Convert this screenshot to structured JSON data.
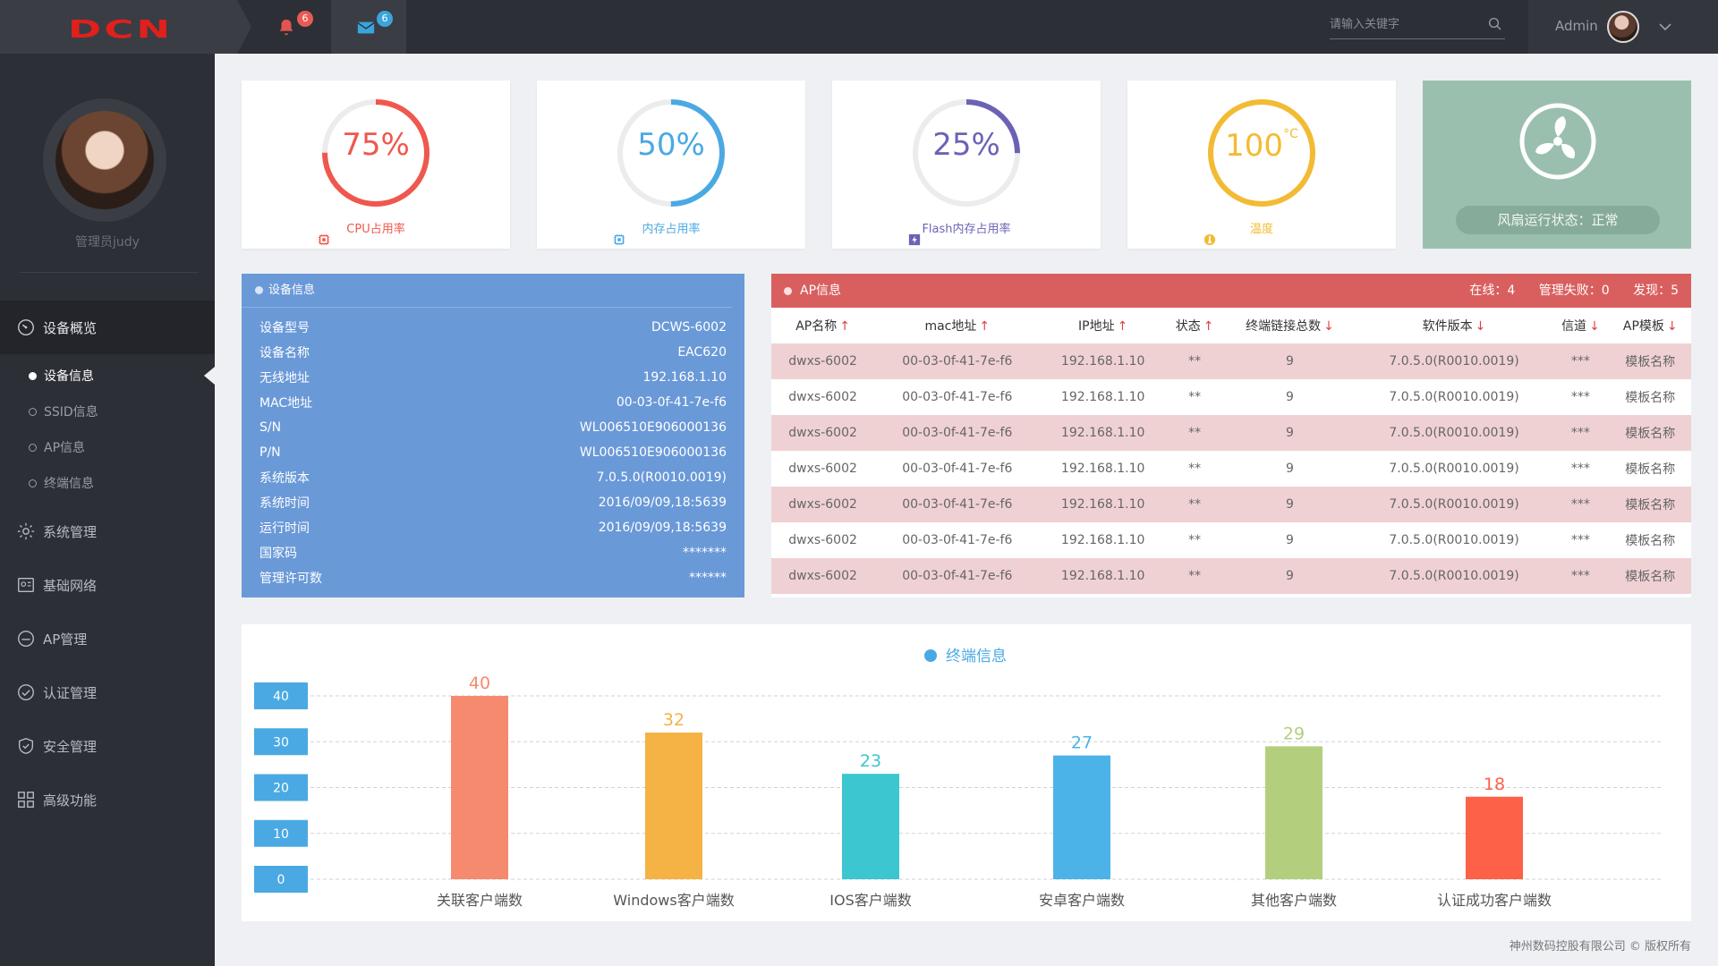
{
  "topbar": {
    "logo_text": "DCN",
    "bell_badge": "6",
    "mail_badge": "6",
    "search_placeholder": "请输入关键字",
    "username": "Admin",
    "colors": {
      "bell_badge": "#e85b54",
      "mail_badge": "#3aa5dc"
    }
  },
  "sidebar": {
    "profile_name": "管理员judy",
    "nav": [
      {
        "label": "设备概览",
        "icon": "dashboard-icon",
        "active": true
      },
      {
        "label": "系统管理",
        "icon": "gear-icon"
      },
      {
        "label": "基础网络",
        "icon": "network-icon"
      },
      {
        "label": "AP管理",
        "icon": "ap-icon"
      },
      {
        "label": "认证管理",
        "icon": "check-circle-icon"
      },
      {
        "label": "安全管理",
        "icon": "shield-icon"
      },
      {
        "label": "高级功能",
        "icon": "grid-icon"
      }
    ],
    "subnav": [
      {
        "label": "设备信息",
        "active": true
      },
      {
        "label": "SSID信息"
      },
      {
        "label": "AP信息"
      },
      {
        "label": "终端信息"
      }
    ]
  },
  "gauges": [
    {
      "value_text": "75%",
      "fraction": 0.75,
      "label": "CPU占用率",
      "color": "#f0574d",
      "icon": "cpu-icon"
    },
    {
      "value_text": "50%",
      "fraction": 0.5,
      "label": "内存占用率",
      "color": "#4aa9e3",
      "icon": "memory-icon"
    },
    {
      "value_text": "25%",
      "fraction": 0.25,
      "label": "Flash内存占用率",
      "color": "#6a63b5",
      "icon": "flash-icon"
    },
    {
      "value_text": "100",
      "unit": "°C",
      "fraction": 1.0,
      "label": "温度",
      "color": "#f3bb33",
      "icon": "temperature-icon"
    }
  ],
  "fan": {
    "status": "风扇运行状态：正常"
  },
  "device_info": {
    "title": "设备信息",
    "rows": [
      {
        "k": "设备型号",
        "v": "DCWS-6002"
      },
      {
        "k": "设备名称",
        "v": "EAC620"
      },
      {
        "k": "无线地址",
        "v": "192.168.1.10"
      },
      {
        "k": "MAC地址",
        "v": "00-03-0f-41-7e-f6"
      },
      {
        "k": "S/N",
        "v": "WL006510E906000136"
      },
      {
        "k": "P/N",
        "v": "WL006510E906000136"
      },
      {
        "k": "系统版本",
        "v": "7.0.5.0(R0010.0019)"
      },
      {
        "k": "系统时间",
        "v": "2016/09/09,18:5639"
      },
      {
        "k": "运行时间",
        "v": "2016/09/09,18:5639"
      },
      {
        "k": "国家码",
        "v": "*******"
      },
      {
        "k": "管理许可数",
        "v": "******"
      }
    ]
  },
  "ap_info": {
    "title": "AP信息",
    "online": "在线：4",
    "failed": "管理失败：0",
    "found": "发现：5",
    "columns": [
      {
        "label": "AP名称",
        "arrow": "↑"
      },
      {
        "label": "mac地址",
        "arrow": "↑"
      },
      {
        "label": "IP地址",
        "arrow": "↑"
      },
      {
        "label": "状态",
        "arrow": "↑"
      },
      {
        "label": "终端链接总数",
        "arrow": "↓"
      },
      {
        "label": "软件版本",
        "arrow": "↓"
      },
      {
        "label": "信道",
        "arrow": "↓"
      },
      {
        "label": "AP模板",
        "arrow": "↓"
      }
    ],
    "rows": [
      [
        "dwxs-6002",
        "00-03-0f-41-7e-f6",
        "192.168.1.10",
        "**",
        "9",
        "7.0.5.0(R0010.0019)",
        "***",
        "模板名称"
      ],
      [
        "dwxs-6002",
        "00-03-0f-41-7e-f6",
        "192.168.1.10",
        "**",
        "9",
        "7.0.5.0(R0010.0019)",
        "***",
        "模板名称"
      ],
      [
        "dwxs-6002",
        "00-03-0f-41-7e-f6",
        "192.168.1.10",
        "**",
        "9",
        "7.0.5.0(R0010.0019)",
        "***",
        "模板名称"
      ],
      [
        "dwxs-6002",
        "00-03-0f-41-7e-f6",
        "192.168.1.10",
        "**",
        "9",
        "7.0.5.0(R0010.0019)",
        "***",
        "模板名称"
      ],
      [
        "dwxs-6002",
        "00-03-0f-41-7e-f6",
        "192.168.1.10",
        "**",
        "9",
        "7.0.5.0(R0010.0019)",
        "***",
        "模板名称"
      ],
      [
        "dwxs-6002",
        "00-03-0f-41-7e-f6",
        "192.168.1.10",
        "**",
        "9",
        "7.0.5.0(R0010.0019)",
        "***",
        "模板名称"
      ],
      [
        "dwxs-6002",
        "00-03-0f-41-7e-f6",
        "192.168.1.10",
        "**",
        "9",
        "7.0.5.0(R0010.0019)",
        "***",
        "模板名称"
      ]
    ]
  },
  "chart_data": {
    "type": "bar",
    "title": "终端信息",
    "categories": [
      "关联客户端数",
      "Windows客户端数",
      "IOS客户端数",
      "安卓客户端数",
      "其他客户端数",
      "认证成功客户端数"
    ],
    "values": [
      40,
      32,
      23,
      27,
      29,
      18
    ],
    "colors": [
      "#f58a6e",
      "#f5b245",
      "#3cc6cf",
      "#4cb3e8",
      "#b3cf7d",
      "#fd6147"
    ],
    "yticks": [
      40,
      30,
      20,
      10,
      0
    ],
    "ylim": [
      0,
      40
    ],
    "grid": true
  },
  "footer": {
    "text": "神州数码控股有限公司 © 版权所有"
  }
}
